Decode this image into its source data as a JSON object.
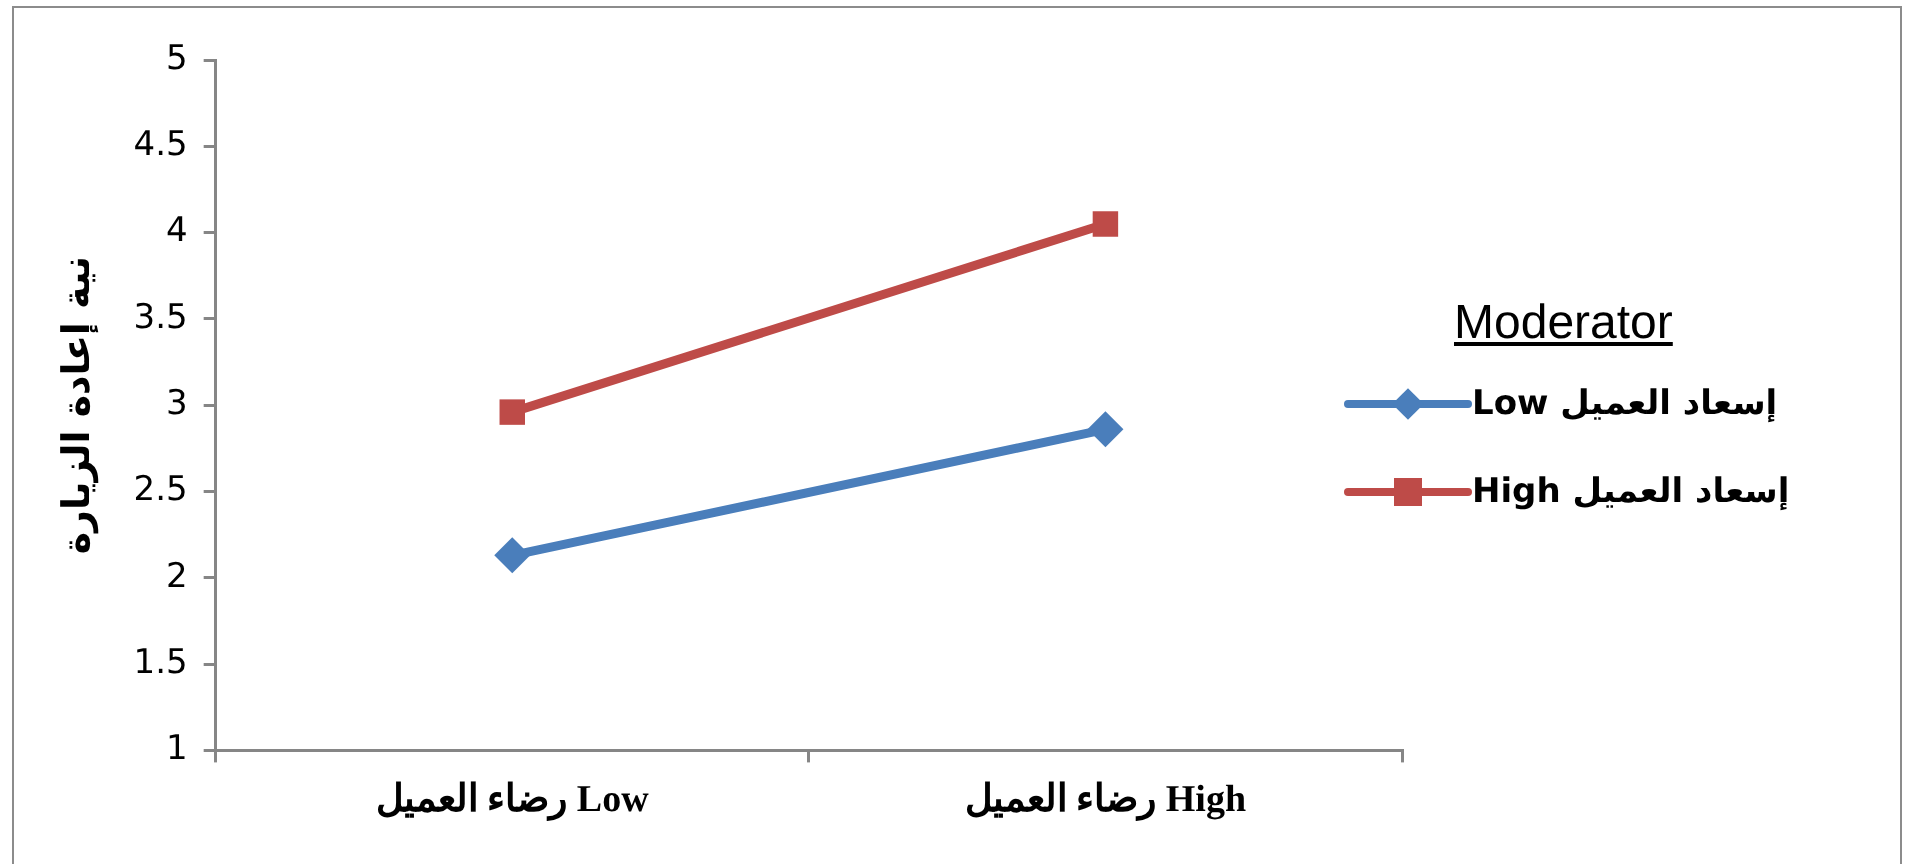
{
  "chart_data": {
    "type": "line",
    "ylabel": "نية إعادة الزيارة",
    "legend_title": "Moderator",
    "legend": "right",
    "grid": false,
    "categories": [
      "رضاء العميل Low",
      "رضاء العميل High"
    ],
    "ylim": [
      1,
      5
    ],
    "yticks": [
      1,
      1.5,
      2,
      2.5,
      3,
      3.5,
      4,
      4.5,
      5
    ],
    "series": [
      {
        "name": "إسعاد العميل Low",
        "color": "#4a7ebb",
        "marker": "diamond",
        "values": [
          2.13,
          2.86
        ]
      },
      {
        "name": "إسعاد العميل High",
        "color": "#be4b48",
        "marker": "square",
        "values": [
          2.96,
          4.05
        ]
      }
    ]
  }
}
